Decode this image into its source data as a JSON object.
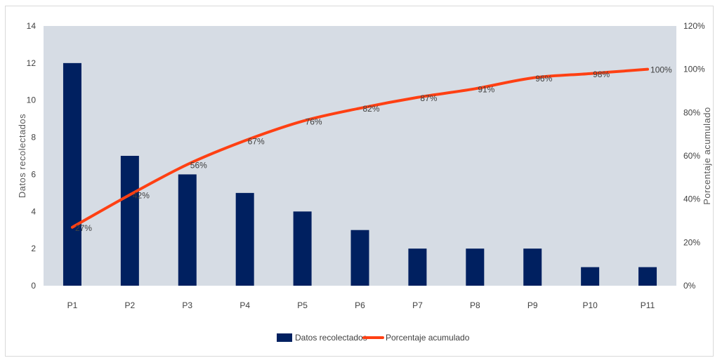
{
  "chart_data": {
    "type": "bar",
    "categories": [
      "P1",
      "P2",
      "P3",
      "P4",
      "P5",
      "P6",
      "P7",
      "P8",
      "P9",
      "P10",
      "P11"
    ],
    "series": [
      {
        "name": "Datos recolectados",
        "type": "bar",
        "axis": "left",
        "values": [
          12,
          7,
          6,
          5,
          4,
          3,
          2,
          2,
          2,
          1,
          1
        ],
        "color": "#002060"
      },
      {
        "name": "Porcentaje acumulado",
        "type": "line",
        "axis": "right",
        "values": [
          27,
          42,
          56,
          67,
          76,
          82,
          87,
          91,
          96,
          98,
          100
        ],
        "labels": [
          "27%",
          "42%",
          "56%",
          "67%",
          "76%",
          "82%",
          "87%",
          "91%",
          "96%",
          "98%",
          "100%"
        ],
        "color": "#ff4013"
      }
    ],
    "ylabel": "Datos recolectados",
    "y2label": "Porcentaje acumulado",
    "ylim": [
      0,
      14
    ],
    "yticks": [
      "0",
      "2",
      "4",
      "6",
      "8",
      "10",
      "12",
      "14"
    ],
    "y2lim": [
      0,
      120
    ],
    "y2ticks": [
      "0%",
      "20%",
      "40%",
      "60%",
      "80%",
      "100%",
      "120%"
    ],
    "plot_background": "#d6dce4",
    "grid": false,
    "legend_position": "bottom"
  }
}
